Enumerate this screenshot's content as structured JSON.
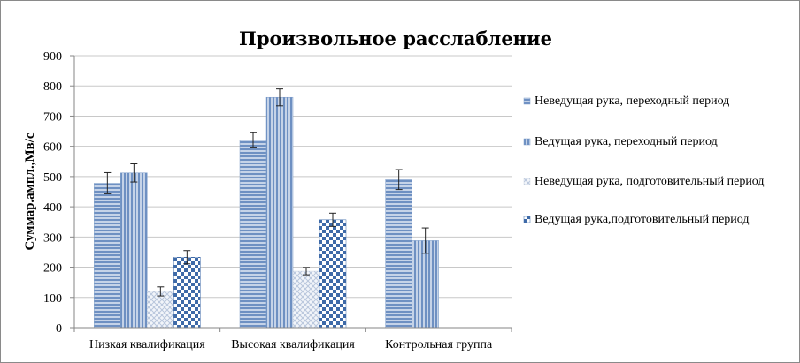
{
  "chart_data": {
    "type": "bar",
    "title": "Произвольное расслабление",
    "xlabel": "",
    "ylabel": "Суммар.ампл.,Мв/с",
    "ylim": [
      0,
      900
    ],
    "yticks": [
      0,
      100,
      200,
      300,
      400,
      500,
      600,
      700,
      800,
      900
    ],
    "grid": true,
    "legend_position": "right",
    "categories": [
      "Низкая квалификация",
      "Высокая квалификация",
      "Контрольная группа"
    ],
    "series": [
      {
        "name": "Неведущая рука, переходный период",
        "values": [
          478,
          620,
          490
        ],
        "errors": [
          35,
          25,
          33
        ],
        "color": "#7a9bc8",
        "pattern": "horizontal-hatch"
      },
      {
        "name": "Ведущая рука, переходный период",
        "values": [
          512,
          762,
          288
        ],
        "errors": [
          30,
          28,
          42
        ],
        "color": "#7a9bc8",
        "pattern": "vertical-hatch"
      },
      {
        "name": "Неведущая рука, подготовительный период",
        "values": [
          120,
          187,
          null
        ],
        "errors": [
          15,
          12,
          null
        ],
        "color": "#d0d8e4",
        "pattern": "cross-hatch"
      },
      {
        "name": "Ведущая рука,подготовительный период",
        "values": [
          233,
          357,
          null
        ],
        "errors": [
          22,
          22,
          null
        ],
        "color": "#3e6aa8",
        "pattern": "checker"
      }
    ]
  }
}
